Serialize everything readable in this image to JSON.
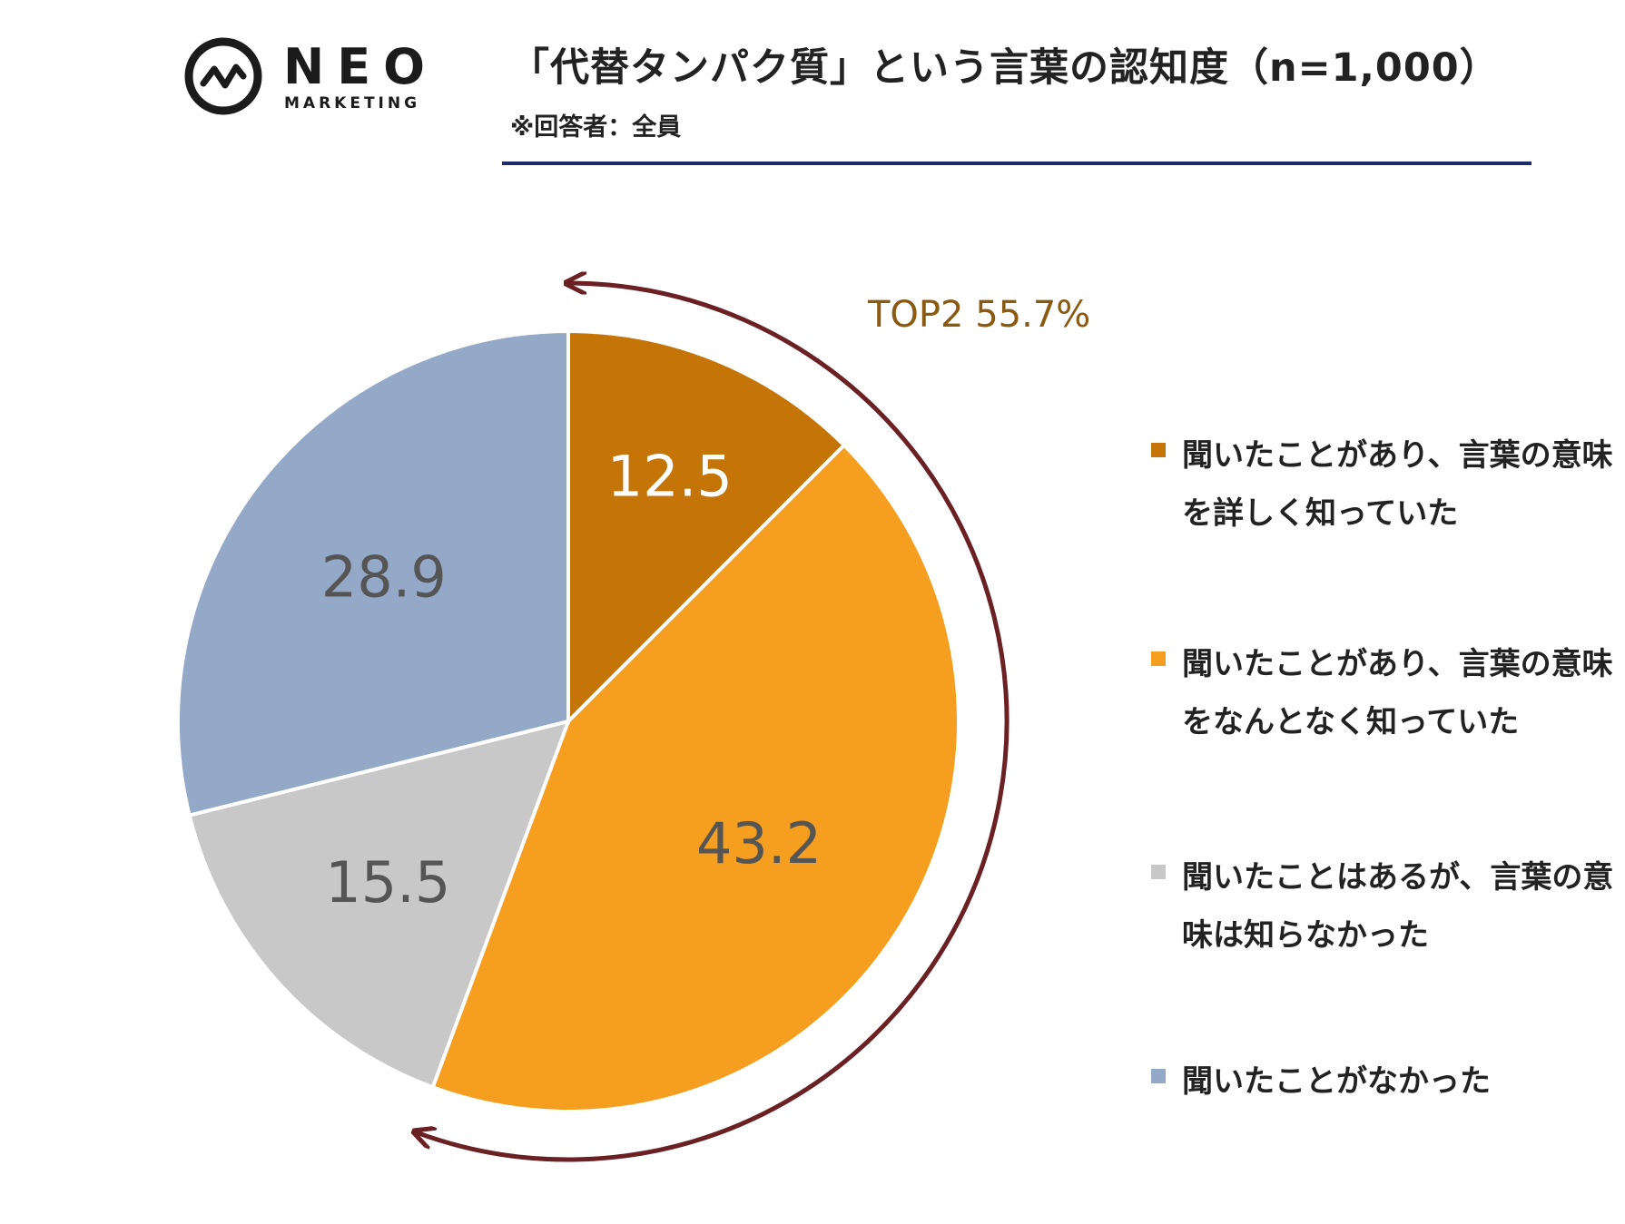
{
  "brand": {
    "name": "NEO",
    "tagline": "MARKETING"
  },
  "header": {
    "title": "「代替タンパク質」という言葉の認知度（n=1,000）",
    "subtitle": "※回答者：全員"
  },
  "colors": {
    "rule": "#1f2a6b",
    "arrow": "#6b2023",
    "annotation_text": "#8a5a10"
  },
  "chart_data": {
    "type": "pie",
    "title": "「代替タンパク質」という言葉の認知度（n=1,000）",
    "unit": "%",
    "start": "12 o'clock, clockwise",
    "slices": [
      {
        "label": "聞いたことがあり、言葉の意味を詳しく知っていた",
        "value": 12.5,
        "value_label": "12.5",
        "color": "#c57507",
        "label_color": "#ffffff"
      },
      {
        "label": "聞いたことがあり、言葉の意味をなんとなく知っていた",
        "value": 43.2,
        "value_label": "43.2",
        "color": "#f59e1f",
        "label_color": "#555555"
      },
      {
        "label": "聞いたことはあるが、言葉の意味は知らなかった",
        "value": 15.5,
        "value_label": "15.5",
        "color": "#c8c8c8",
        "label_color": "#555555"
      },
      {
        "label": "聞いたことがなかった",
        "value": 28.9,
        "value_label": "28.9",
        "color": "#93a9c7",
        "label_color": "#555555"
      }
    ],
    "annotation": {
      "text": "TOP2 55.7%",
      "covers": [
        0,
        1
      ]
    },
    "legend_position": "right"
  }
}
